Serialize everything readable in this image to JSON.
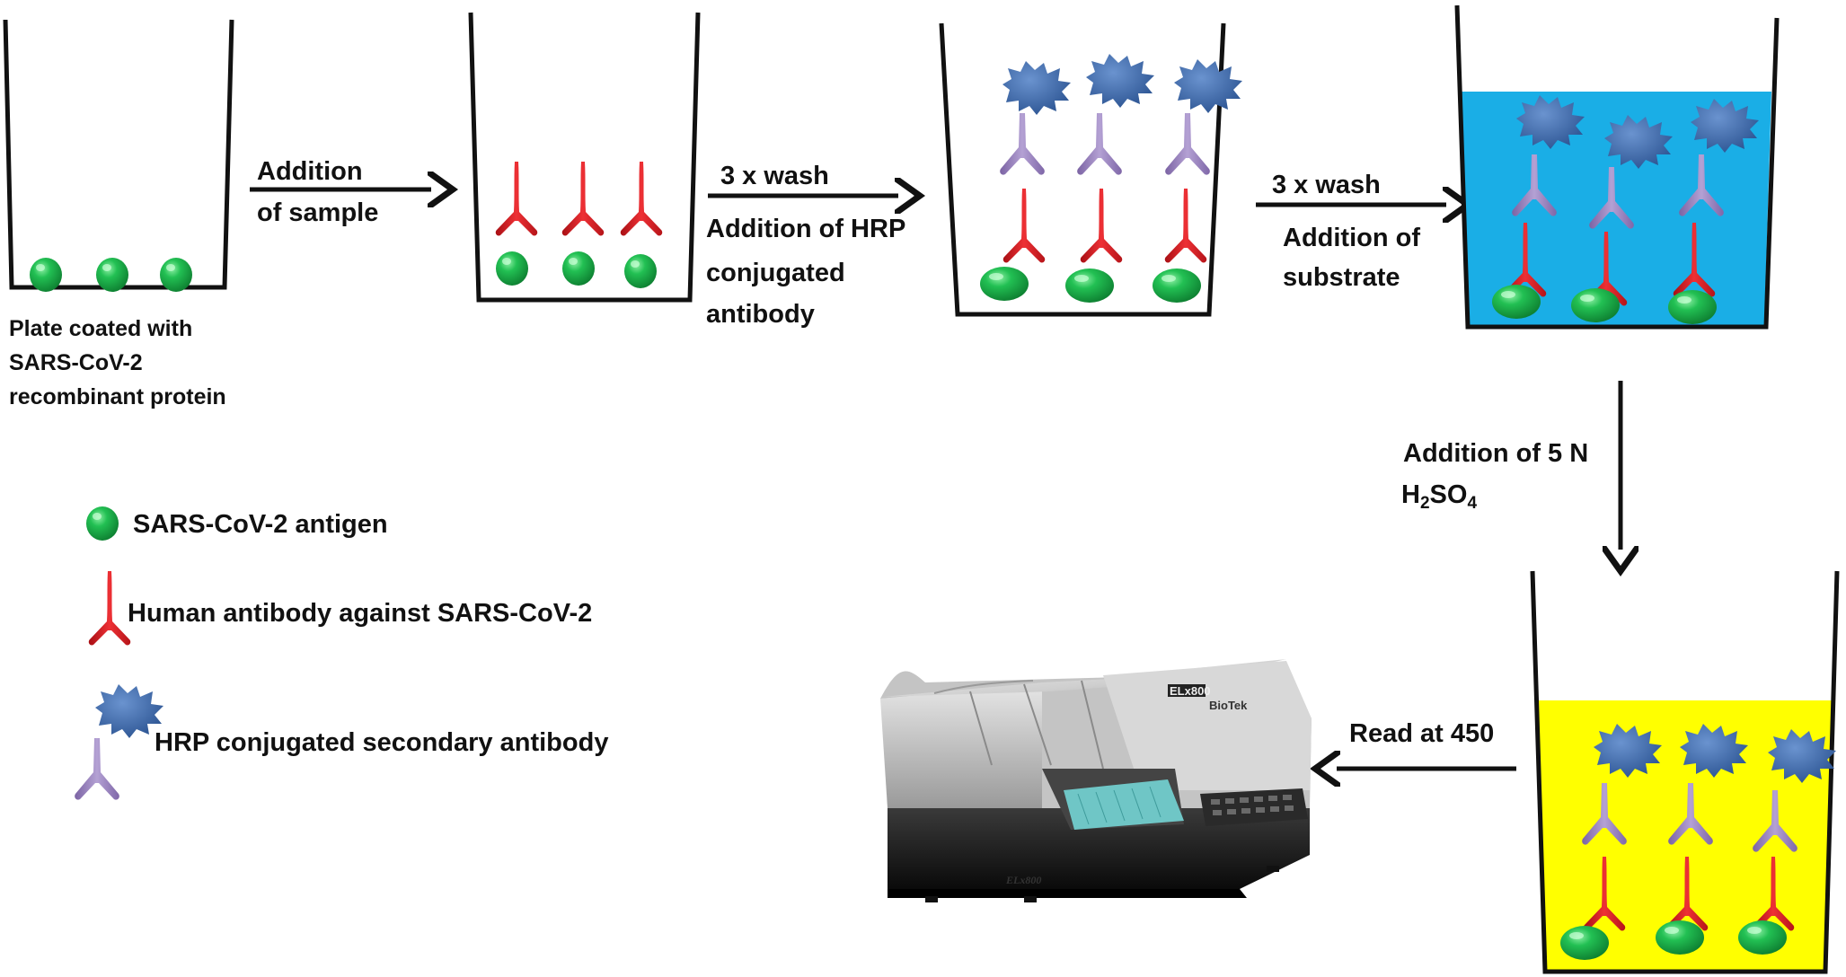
{
  "steps": {
    "coated_caption": [
      "Plate coated with",
      "SARS-CoV-2",
      "recombinant protein"
    ],
    "step1": [
      "Addition",
      "of sample"
    ],
    "step2": [
      "3 x wash",
      "Addition of HRP",
      "conjugated",
      "antibody"
    ],
    "step3": [
      "3 x wash",
      "Addition of",
      "substrate"
    ],
    "step4_line1": "Addition of 5 N",
    "step4_formula": {
      "h": "H",
      "h_sub": "2",
      "so": "SO",
      "so_sub": "4"
    },
    "step5": "Read at 450"
  },
  "legend": {
    "antigen": "SARS-CoV-2 antigen",
    "human_antibody": "Human antibody against SARS-CoV-2",
    "hrp_antibody": "HRP conjugated secondary antibody"
  },
  "reader": {
    "model": "ELx800",
    "model_panel": "ELx800",
    "brand": "BioTek"
  },
  "colors": {
    "antigen": "#1bb44a",
    "human_antibody": "#e3262b",
    "secondary_antibody": "#9c84bf",
    "hrp": "#3f6fb0",
    "substrate": "#1aaee6",
    "stop_solution": "#ffff00",
    "outline": "#111111"
  }
}
